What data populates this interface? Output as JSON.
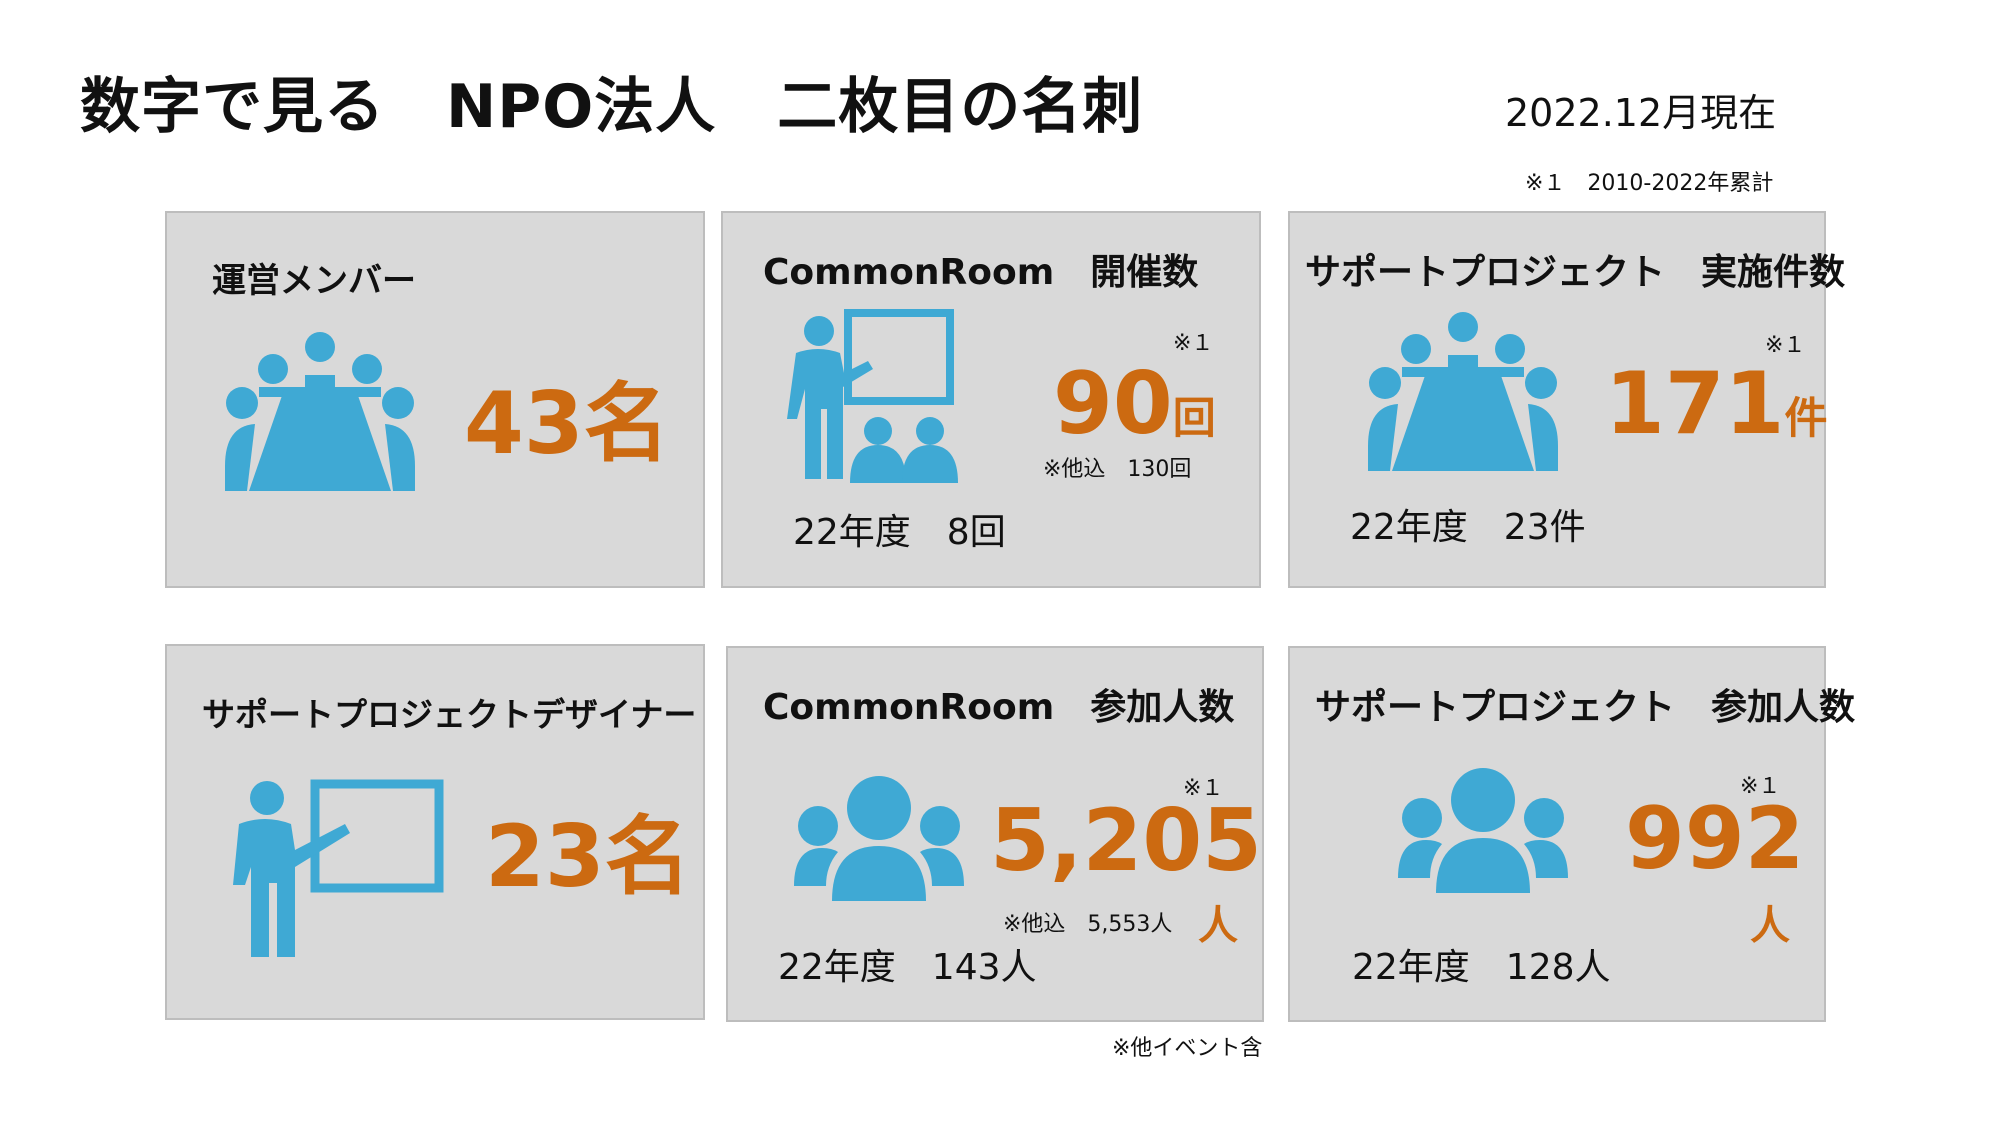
{
  "header": {
    "title": "数字で見る　NPO法人　二枚目の名刺",
    "as_of": "2022.12月現在",
    "cumulative_note": "※１　2010-2022年累計"
  },
  "cards": {
    "members": {
      "title": "運営メンバー",
      "value": "43",
      "unit": "名",
      "icon": "meeting-table-icon"
    },
    "commonroom_events": {
      "title": "CommonRoom　開催数",
      "value": "90",
      "unit": "回",
      "mark": "※１",
      "other": "※他込　130回",
      "fy": "22年度　8回",
      "icon": "presenter-with-audience-icon"
    },
    "support_projects": {
      "title": "サポートプロジェクト　実施件数",
      "value": "171",
      "unit": "件",
      "mark": "※１",
      "fy": "22年度　23件",
      "icon": "meeting-table-icon"
    },
    "designers": {
      "title": "サポートプロジェクトデザイナー",
      "value": "23",
      "unit": "名",
      "icon": "presenter-whiteboard-icon"
    },
    "commonroom_participants": {
      "title": "CommonRoom　参加人数",
      "value": "5,205",
      "unit": "人",
      "mark": "※１",
      "other": "※他込　5,553人",
      "fy": "22年度　143人",
      "icon": "group-people-icon"
    },
    "project_participants": {
      "title": "サポートプロジェクト　参加人数",
      "value": "992",
      "unit": "人",
      "mark": "※１",
      "fy": "22年度　128人",
      "icon": "group-people-icon"
    }
  },
  "footnote": "※他イベント含",
  "colors": {
    "accent": "#cc6a11",
    "icon": "#3fa9d4",
    "card_bg": "#d9d9d9"
  }
}
